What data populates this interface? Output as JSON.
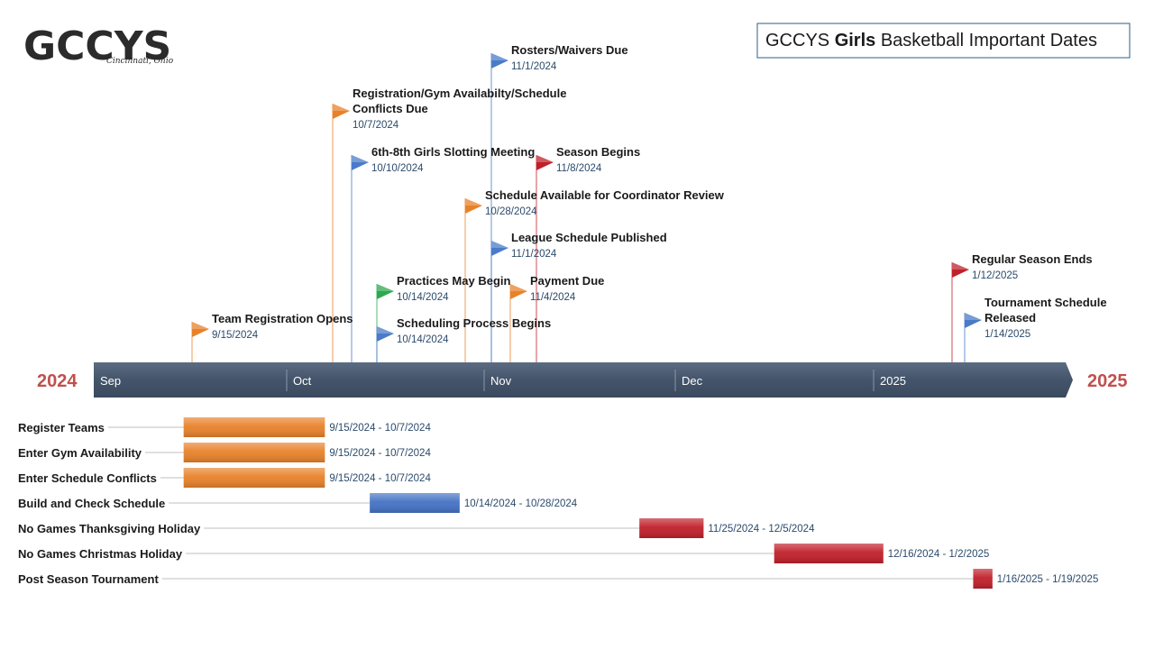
{
  "logo": {
    "text": "GCCYS",
    "subtext": "Cincinnati, Ohio"
  },
  "title": {
    "pre": "GCCYS ",
    "bold": "Girls",
    "post": " Basketball Important Dates"
  },
  "timeline": {
    "start_year": "2024",
    "end_year": "2025",
    "months": [
      "Sep",
      "Oct",
      "Nov",
      "Dec",
      "2025"
    ]
  },
  "milestones": [
    {
      "lines": [
        "Rosters/Waivers Due"
      ],
      "date": "11/1/2024",
      "color": "#4a7bc8"
    },
    {
      "lines": [
        "Registration/Gym Availabilty/Schedule",
        "Conflicts Due"
      ],
      "date": "10/7/2024",
      "color": "#e8822a"
    },
    {
      "lines": [
        "6th-8th Girls Slotting Meeting"
      ],
      "date": "10/10/2024",
      "color": "#4a7bc8"
    },
    {
      "lines": [
        "Season Begins"
      ],
      "date": "11/8/2024",
      "color": "#c0202a"
    },
    {
      "lines": [
        "Schedule Available for Coordinator Review"
      ],
      "date": "10/28/2024",
      "color": "#e8822a"
    },
    {
      "lines": [
        "League Schedule Published"
      ],
      "date": "11/1/2024",
      "color": "#4a7bc8"
    },
    {
      "lines": [
        "Practices May Begin"
      ],
      "date": "10/14/2024",
      "color": "#2fa84f"
    },
    {
      "lines": [
        "Payment Due"
      ],
      "date": "11/4/2024",
      "color": "#e8822a"
    },
    {
      "lines": [
        "Team Registration Opens"
      ],
      "date": "9/15/2024",
      "color": "#e8822a"
    },
    {
      "lines": [
        "Scheduling Process Begins"
      ],
      "date": "10/14/2024",
      "color": "#4a7bc8"
    },
    {
      "lines": [
        "Regular Season Ends"
      ],
      "date": "1/12/2025",
      "color": "#c0202a"
    },
    {
      "lines": [
        "Tournament Schedule",
        "Released"
      ],
      "date": "1/14/2025",
      "color": "#4a7bc8"
    }
  ],
  "tasks": [
    {
      "label": "Register Teams",
      "range": "9/15/2024 - 10/7/2024",
      "start": "2024-09-15",
      "end": "2024-10-07",
      "color": "#e8822a"
    },
    {
      "label": "Enter Gym Availability",
      "range": "9/15/2024 - 10/7/2024",
      "start": "2024-09-15",
      "end": "2024-10-07",
      "color": "#e8822a"
    },
    {
      "label": "Enter Schedule Conflicts",
      "range": "9/15/2024 - 10/7/2024",
      "start": "2024-09-15",
      "end": "2024-10-07",
      "color": "#e8822a"
    },
    {
      "label": "Build and Check Schedule",
      "range": "10/14/2024 - 10/28/2024",
      "start": "2024-10-14",
      "end": "2024-10-28",
      "color": "#4472c4"
    },
    {
      "label": "No Games Thanksgiving Holiday",
      "range": "11/25/2024 - 12/5/2024",
      "start": "2024-11-25",
      "end": "2024-12-05",
      "color": "#c0202a"
    },
    {
      "label": "No Games Christmas Holiday",
      "range": "12/16/2024 - 1/2/2025",
      "start": "2024-12-16",
      "end": "2025-01-02",
      "color": "#c0202a"
    },
    {
      "label": "Post Season Tournament",
      "range": "1/16/2025 - 1/19/2025",
      "start": "2025-01-16",
      "end": "2025-01-19",
      "color": "#c0202a"
    }
  ]
}
